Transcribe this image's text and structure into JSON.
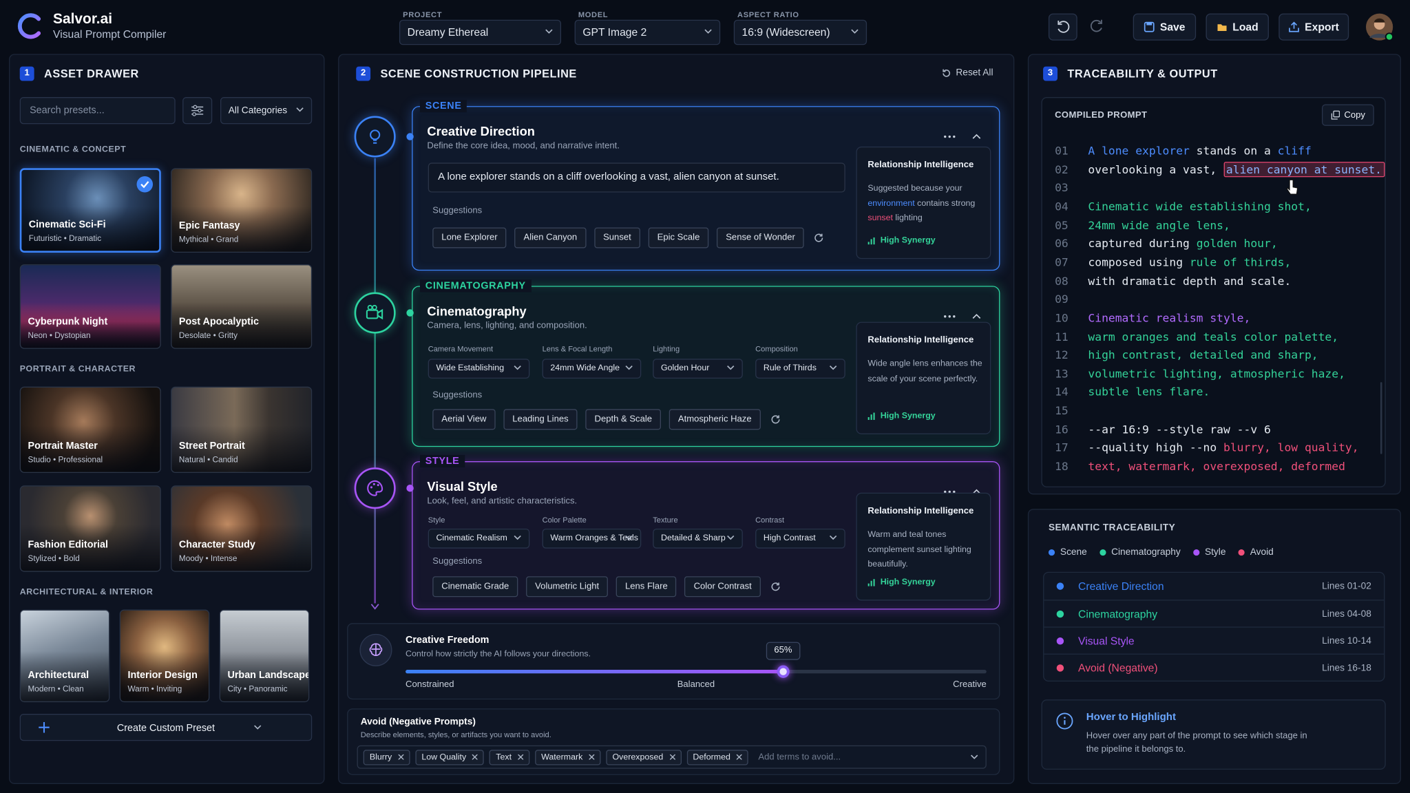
{
  "header": {
    "brand": "Salvor.ai",
    "tagline": "Visual Prompt Compiler",
    "selectors": [
      {
        "label": "PROJECT",
        "value": "Dreamy Ethereal"
      },
      {
        "label": "MODEL",
        "value": "GPT Image 2"
      },
      {
        "label": "ASPECT RATIO",
        "value": "16:9 (Widescreen)"
      }
    ],
    "actions": [
      "Save",
      "Load",
      "Export"
    ]
  },
  "asset_drawer": {
    "step": "1",
    "title": "ASSET DRAWER",
    "search_placeholder": "Search presets...",
    "filter": "All Categories",
    "sections": [
      {
        "title": "CINEMATIC & CONCEPT",
        "presets": [
          {
            "name": "Cinematic Sci-Fi",
            "tags": "Futuristic • Dramatic",
            "selected": true
          },
          {
            "name": "Epic Fantasy",
            "tags": "Mythical • Grand"
          },
          {
            "name": "Cyberpunk Night",
            "tags": "Neon • Dystopian"
          },
          {
            "name": "Post Apocalyptic",
            "tags": "Desolate • Gritty"
          }
        ]
      },
      {
        "title": "PORTRAIT & CHARACTER",
        "presets": [
          {
            "name": "Portrait Master",
            "tags": "Studio • Professional"
          },
          {
            "name": "Street Portrait",
            "tags": "Natural • Candid"
          },
          {
            "name": "Fashion Editorial",
            "tags": "Stylized • Bold"
          },
          {
            "name": "Character Study",
            "tags": "Moody • Intense"
          }
        ]
      },
      {
        "title": "ARCHITECTURAL & INTERIOR",
        "presets": [
          {
            "name": "Architectural",
            "tags": "Modern • Clean"
          },
          {
            "name": "Interior Design",
            "tags": "Warm • Inviting"
          },
          {
            "name": "Urban Landscape",
            "tags": "City • Panoramic"
          }
        ]
      }
    ],
    "create_button": "Create Custom Preset"
  },
  "pipeline": {
    "step": "2",
    "title": "SCENE CONSTRUCTION PIPELINE",
    "reset": "Reset All",
    "stages": [
      {
        "tag": "SCENE",
        "color": "#3b82f6",
        "title": "Creative Direction",
        "description": "Define the core idea, mood, and narrative intent.",
        "prompt": "A lone explorer stands on a cliff overlooking a vast, alien canyon at sunset.",
        "suggestions_label": "Suggestions",
        "suggestions": [
          "Lone Explorer",
          "Alien Canyon",
          "Sunset",
          "Epic Scale",
          "Sense of Wonder"
        ],
        "insight": {
          "title": "Relationship Intelligence",
          "segments": [
            {
              "text": "Suggested because your "
            },
            {
              "text": "environment",
              "color": "#4d8dff"
            },
            {
              "text": " contains strong "
            },
            {
              "text": "sunset",
              "color": "#f0507a"
            },
            {
              "text": " lighting"
            }
          ],
          "badge": "High Synergy"
        }
      },
      {
        "tag": "CINEMATOGRAPHY",
        "color": "#2dd4a0",
        "title": "Cinematography",
        "description": "Camera, lens, lighting, and composition.",
        "fields": [
          {
            "label": "Camera Movement",
            "value": "Wide Establishing"
          },
          {
            "label": "Lens & Focal Length",
            "value": "24mm Wide Angle"
          },
          {
            "label": "Lighting",
            "value": "Golden Hour"
          },
          {
            "label": "Composition",
            "value": "Rule of Thirds"
          }
        ],
        "suggestions_label": "Suggestions",
        "suggestions": [
          "Aerial View",
          "Leading Lines",
          "Depth & Scale",
          "Atmospheric Haze"
        ],
        "insight": {
          "title": "Relationship Intelligence",
          "segments": [
            {
              "text": "Wide angle lens enhances the scale of your scene perfectly."
            }
          ],
          "badge": "High Synergy"
        }
      },
      {
        "tag": "STYLE",
        "color": "#a855f7",
        "title": "Visual Style",
        "description": "Look, feel, and artistic characteristics.",
        "fields": [
          {
            "label": "Style",
            "value": "Cinematic Realism"
          },
          {
            "label": "Color Palette",
            "value": "Warm Oranges & Teals"
          },
          {
            "label": "Texture",
            "value": "Detailed & Sharp"
          },
          {
            "label": "Contrast",
            "value": "High Contrast"
          }
        ],
        "suggestions_label": "Suggestions",
        "suggestions": [
          "Cinematic Grade",
          "Volumetric Light",
          "Lens Flare",
          "Color Contrast"
        ],
        "insight": {
          "title": "Relationship Intelligence",
          "segments": [
            {
              "text": "Warm and teal tones complement sunset lighting beautifully."
            }
          ],
          "badge": "High Synergy"
        }
      }
    ],
    "freedom": {
      "title": "Creative Freedom",
      "description": "Control how strictly the AI follows your directions.",
      "value": 65,
      "value_label": "65%",
      "scale_labels": [
        "Constrained",
        "Balanced",
        "Creative"
      ]
    },
    "avoid": {
      "title": "Avoid (Negative Prompts)",
      "description": "Describe elements, styles, or artifacts you want to avoid.",
      "terms": [
        "Blurry",
        "Low Quality",
        "Text",
        "Watermark",
        "Overexposed",
        "Deformed"
      ],
      "placeholder": "Add terms to avoid..."
    }
  },
  "output": {
    "step": "3",
    "title": "TRACEABILITY & OUTPUT",
    "compiled": {
      "title": "COMPILED PROMPT",
      "copy": "Copy",
      "lines": [
        {
          "number": "01",
          "segments": [
            {
              "text": "A lone explorer",
              "color": "#4d8dff"
            },
            {
              "text": " stands on a "
            },
            {
              "text": "cliff",
              "color": "#4d8dff"
            }
          ]
        },
        {
          "number": "02",
          "segments": [
            {
              "text": "overlooking a vast, "
            },
            {
              "text": "alien canyon at sunset.",
              "color": "#8ab4ff",
              "highlight": "#e2466f"
            }
          ]
        },
        {
          "number": "03",
          "segments": []
        },
        {
          "number": "04",
          "segments": [
            {
              "text": "Cinematic wide establishing shot,",
              "color": "#34d399"
            }
          ]
        },
        {
          "number": "05",
          "segments": [
            {
              "text": "24mm wide angle lens,",
              "color": "#34d399"
            }
          ]
        },
        {
          "number": "06",
          "segments": [
            {
              "text": "captured during "
            },
            {
              "text": "golden hour,",
              "color": "#34d399"
            }
          ]
        },
        {
          "number": "07",
          "segments": [
            {
              "text": "composed using "
            },
            {
              "text": "rule of thirds,",
              "color": "#34d399"
            }
          ]
        },
        {
          "number": "08",
          "segments": [
            {
              "text": "with dramatic depth and scale."
            }
          ]
        },
        {
          "number": "09",
          "segments": []
        },
        {
          "number": "10",
          "segments": [
            {
              "text": "Cinematic realism style,",
              "color": "#b26bff"
            }
          ]
        },
        {
          "number": "11",
          "segments": [
            {
              "text": "warm oranges and teals color palette,",
              "color": "#34d399"
            }
          ]
        },
        {
          "number": "12",
          "segments": [
            {
              "text": "high contrast, detailed and sharp,",
              "color": "#34d399"
            }
          ]
        },
        {
          "number": "13",
          "segments": [
            {
              "text": "volumetric lighting, atmospheric haze,",
              "color": "#34d399"
            }
          ]
        },
        {
          "number": "14",
          "segments": [
            {
              "text": "subtle lens flare.",
              "color": "#34d399"
            }
          ]
        },
        {
          "number": "15",
          "segments": []
        },
        {
          "number": "16",
          "segments": [
            {
              "text": "--ar 16:9 --style raw --v 6"
            }
          ]
        },
        {
          "number": "17",
          "segments": [
            {
              "text": "--quality high --no "
            },
            {
              "text": "blurry, low quality,",
              "color": "#f0507a"
            }
          ]
        },
        {
          "number": "18",
          "segments": [
            {
              "text": "text, watermark, overexposed, deformed",
              "color": "#f0507a"
            }
          ]
        }
      ]
    },
    "traceability": {
      "title": "SEMANTIC TRACEABILITY",
      "legend": [
        {
          "name": "Scene",
          "color": "#3b82f6"
        },
        {
          "name": "Cinematography",
          "color": "#2dd4a0"
        },
        {
          "name": "Style",
          "color": "#a855f7"
        },
        {
          "name": "Avoid",
          "color": "#f0507a"
        }
      ],
      "rows": [
        {
          "stage": "Creative Direction",
          "lines": "Lines 01-02",
          "color": "#3b82f6"
        },
        {
          "stage": "Cinematography",
          "lines": "Lines 04-08",
          "color": "#2dd4a0"
        },
        {
          "stage": "Visual Style",
          "lines": "Lines 10-14",
          "color": "#a855f7"
        },
        {
          "stage": "Avoid (Negative)",
          "lines": "Lines 16-18",
          "color": "#f0507a"
        }
      ]
    },
    "hint": {
      "title": "Hover to Highlight",
      "text": "Hover over any part of the prompt to see which stage in the pipeline it belongs to."
    }
  }
}
